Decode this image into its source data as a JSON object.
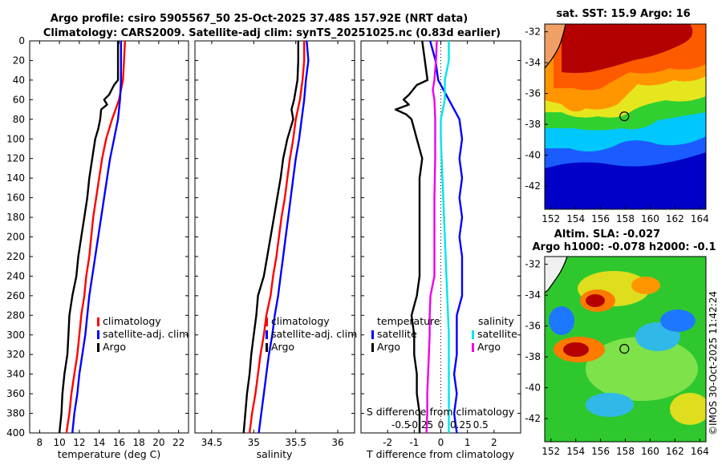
{
  "titles": {
    "line1": "Argo profile: csiro 5905567_50 25-Oct-2025 37.48S 157.92E (NRT data)",
    "line2": "Climatology: CARS2009. Satellite-adj clim: synTS_20251025.nc (0.83d earlier)",
    "sst": "sat. SST: 15.9 Argo: 16",
    "sla1": "Altim. SLA: -0.027",
    "sla2": "Argo h1000: -0.078 h2000: -0.1"
  },
  "watermark": "©IMOS 30-Oct-2025 11:42:24",
  "colors": {
    "argo": "#000000",
    "climatology": "#ff0000",
    "satellite": "#0000ff",
    "salinity_satellite": "#00e5ee",
    "salinity_argo": "#ee00ee"
  },
  "depth_ticks": [
    0,
    20,
    40,
    60,
    80,
    100,
    120,
    140,
    160,
    180,
    200,
    220,
    240,
    260,
    280,
    300,
    320,
    340,
    360,
    380,
    400
  ],
  "chart_data": [
    {
      "type": "line",
      "name": "temperature",
      "xlabel": "temperature (deg C)",
      "ylabel": "depth",
      "xlim": [
        7,
        23
      ],
      "ylim": [
        0,
        400
      ],
      "y_reversed": true,
      "xticks": [
        8,
        10,
        12,
        14,
        16,
        18,
        20,
        22
      ],
      "xtick_labels": [
        "8",
        "10",
        "12",
        "14",
        "16",
        "18",
        "20",
        "22"
      ],
      "legend": [
        "climatology",
        "satellite-adj. clim",
        "Argo"
      ],
      "series": [
        {
          "name": "climatology",
          "color": "#ff0000",
          "points": [
            [
              16.6,
              0
            ],
            [
              16.5,
              20
            ],
            [
              16.4,
              40
            ],
            [
              16.0,
              60
            ],
            [
              15.3,
              80
            ],
            [
              14.7,
              100
            ],
            [
              14.3,
              120
            ],
            [
              14.0,
              140
            ],
            [
              13.7,
              160
            ],
            [
              13.4,
              180
            ],
            [
              13.2,
              200
            ],
            [
              13.0,
              220
            ],
            [
              12.7,
              240
            ],
            [
              12.5,
              260
            ],
            [
              12.2,
              280
            ],
            [
              12.0,
              300
            ],
            [
              11.8,
              320
            ],
            [
              11.5,
              340
            ],
            [
              11.2,
              360
            ],
            [
              11.0,
              380
            ],
            [
              10.7,
              400
            ]
          ]
        },
        {
          "name": "satellite-adj. clim",
          "color": "#0000ff",
          "points": [
            [
              16.2,
              0
            ],
            [
              16.2,
              20
            ],
            [
              16.2,
              40
            ],
            [
              16.1,
              60
            ],
            [
              15.9,
              80
            ],
            [
              15.5,
              100
            ],
            [
              15.1,
              120
            ],
            [
              14.8,
              140
            ],
            [
              14.5,
              160
            ],
            [
              14.2,
              180
            ],
            [
              13.9,
              200
            ],
            [
              13.6,
              220
            ],
            [
              13.3,
              240
            ],
            [
              13.0,
              260
            ],
            [
              12.8,
              280
            ],
            [
              12.6,
              300
            ],
            [
              12.3,
              320
            ],
            [
              12.0,
              340
            ],
            [
              11.8,
              360
            ],
            [
              11.5,
              380
            ],
            [
              11.3,
              400
            ]
          ]
        },
        {
          "name": "Argo",
          "color": "#000000",
          "points": [
            [
              15.9,
              0
            ],
            [
              15.9,
              20
            ],
            [
              15.9,
              40
            ],
            [
              15.5,
              45
            ],
            [
              15.0,
              55
            ],
            [
              14.5,
              60
            ],
            [
              14.8,
              65
            ],
            [
              14.2,
              70
            ],
            [
              14.1,
              80
            ],
            [
              13.9,
              90
            ],
            [
              13.6,
              100
            ],
            [
              13.3,
              120
            ],
            [
              13.0,
              140
            ],
            [
              12.8,
              160
            ],
            [
              12.5,
              180
            ],
            [
              12.2,
              200
            ],
            [
              11.9,
              220
            ],
            [
              11.7,
              240
            ],
            [
              11.3,
              260
            ],
            [
              11.0,
              280
            ],
            [
              10.9,
              300
            ],
            [
              10.8,
              320
            ],
            [
              10.5,
              340
            ],
            [
              10.3,
              360
            ],
            [
              10.2,
              380
            ],
            [
              10.0,
              400
            ]
          ]
        }
      ]
    },
    {
      "type": "line",
      "name": "salinity",
      "xlabel": "salinity",
      "ylabel": "depth",
      "xlim": [
        34.3,
        36.2
      ],
      "ylim": [
        0,
        400
      ],
      "y_reversed": true,
      "xticks": [
        34.5,
        35,
        35.5,
        36
      ],
      "xtick_labels": [
        "34.5",
        "35",
        "35.5",
        "36"
      ],
      "legend": [
        "climatology",
        "satellite-adj. clim",
        "Argo"
      ],
      "series": [
        {
          "name": "climatology",
          "color": "#ff0000",
          "points": [
            [
              35.6,
              0
            ],
            [
              35.6,
              20
            ],
            [
              35.58,
              40
            ],
            [
              35.55,
              60
            ],
            [
              35.5,
              80
            ],
            [
              35.47,
              100
            ],
            [
              35.43,
              120
            ],
            [
              35.4,
              140
            ],
            [
              35.37,
              160
            ],
            [
              35.33,
              180
            ],
            [
              35.3,
              200
            ],
            [
              35.27,
              220
            ],
            [
              35.23,
              240
            ],
            [
              35.2,
              260
            ],
            [
              35.15,
              280
            ],
            [
              35.12,
              300
            ],
            [
              35.08,
              320
            ],
            [
              35.05,
              340
            ],
            [
              35.02,
              360
            ],
            [
              34.98,
              380
            ],
            [
              34.95,
              400
            ]
          ]
        },
        {
          "name": "satellite-adj. clim",
          "color": "#0000ff",
          "points": [
            [
              35.63,
              0
            ],
            [
              35.65,
              20
            ],
            [
              35.62,
              40
            ],
            [
              35.6,
              60
            ],
            [
              35.57,
              80
            ],
            [
              35.54,
              100
            ],
            [
              35.5,
              120
            ],
            [
              35.47,
              140
            ],
            [
              35.44,
              160
            ],
            [
              35.41,
              180
            ],
            [
              35.38,
              200
            ],
            [
              35.35,
              220
            ],
            [
              35.32,
              240
            ],
            [
              35.29,
              260
            ],
            [
              35.25,
              280
            ],
            [
              35.22,
              300
            ],
            [
              35.18,
              320
            ],
            [
              35.15,
              340
            ],
            [
              35.12,
              360
            ],
            [
              35.09,
              380
            ],
            [
              35.06,
              400
            ]
          ]
        },
        {
          "name": "Argo",
          "color": "#000000",
          "points": [
            [
              35.53,
              0
            ],
            [
              35.53,
              20
            ],
            [
              35.52,
              40
            ],
            [
              35.5,
              50
            ],
            [
              35.48,
              60
            ],
            [
              35.45,
              70
            ],
            [
              35.47,
              80
            ],
            [
              35.4,
              100
            ],
            [
              35.35,
              120
            ],
            [
              35.32,
              140
            ],
            [
              35.28,
              160
            ],
            [
              35.24,
              180
            ],
            [
              35.2,
              200
            ],
            [
              35.16,
              220
            ],
            [
              35.12,
              240
            ],
            [
              35.05,
              260
            ],
            [
              35.03,
              280
            ],
            [
              35.0,
              300
            ],
            [
              34.97,
              320
            ],
            [
              34.95,
              340
            ],
            [
              34.92,
              360
            ],
            [
              34.9,
              380
            ],
            [
              34.88,
              400
            ]
          ]
        }
      ]
    },
    {
      "type": "line",
      "name": "difference",
      "xlabel": "T difference from climatology",
      "x2label": "S difference from climatology",
      "ylabel": "depth",
      "xlim": [
        -3,
        3
      ],
      "ylim": [
        0,
        400
      ],
      "y_reversed": true,
      "xticks": [
        -2,
        -1,
        0,
        1,
        2
      ],
      "xtick_labels": [
        "-2",
        "-1",
        "0",
        "1",
        "2"
      ],
      "x2ticks": [
        -0.5,
        -0.25,
        0,
        0.25,
        0.5
      ],
      "x2tick_labels": [
        "-0.5",
        "-0.25",
        "0",
        "0.25",
        "0.5"
      ],
      "legend_temperature_title": "temperature",
      "legend_temperature": [
        "satellite",
        "Argo"
      ],
      "legend_salinity_title": "salinity",
      "legend_salinity": [
        "satellite",
        "Argo"
      ],
      "series": [
        {
          "name": "temperature satellite",
          "color": "#0000ff",
          "points": [
            [
              -0.4,
              0
            ],
            [
              -0.2,
              20
            ],
            [
              -0.1,
              40
            ],
            [
              0.3,
              60
            ],
            [
              0.5,
              70
            ],
            [
              0.7,
              80
            ],
            [
              0.8,
              100
            ],
            [
              0.7,
              120
            ],
            [
              0.8,
              140
            ],
            [
              0.7,
              160
            ],
            [
              0.8,
              180
            ],
            [
              0.7,
              200
            ],
            [
              0.8,
              220
            ],
            [
              0.8,
              240
            ],
            [
              0.8,
              260
            ],
            [
              0.6,
              280
            ],
            [
              0.6,
              300
            ],
            [
              0.6,
              320
            ],
            [
              0.5,
              340
            ],
            [
              0.6,
              360
            ],
            [
              0.5,
              380
            ],
            [
              0.6,
              400
            ]
          ]
        },
        {
          "name": "temperature Argo",
          "color": "#000000",
          "points": [
            [
              -0.7,
              0
            ],
            [
              -0.6,
              20
            ],
            [
              -0.5,
              40
            ],
            [
              -0.9,
              45
            ],
            [
              -1.2,
              55
            ],
            [
              -1.4,
              60
            ],
            [
              -1.2,
              65
            ],
            [
              -1.7,
              70
            ],
            [
              -1.3,
              75
            ],
            [
              -1.1,
              80
            ],
            [
              -0.9,
              100
            ],
            [
              -0.7,
              120
            ],
            [
              -0.8,
              140
            ],
            [
              -0.8,
              160
            ],
            [
              -0.8,
              180
            ],
            [
              -0.8,
              200
            ],
            [
              -0.8,
              220
            ],
            [
              -0.8,
              240
            ],
            [
              -0.9,
              260
            ],
            [
              -1.1,
              280
            ],
            [
              -1.0,
              300
            ],
            [
              -1.0,
              320
            ],
            [
              -0.9,
              340
            ],
            [
              -0.9,
              360
            ],
            [
              -0.8,
              380
            ],
            [
              -0.8,
              400
            ]
          ]
        },
        {
          "name": "salinity satellite",
          "color": "#00e5ee",
          "points": [
            [
              0.1,
              0
            ],
            [
              0.1,
              20
            ],
            [
              0.05,
              40
            ],
            [
              0.05,
              60
            ],
            [
              0.0,
              80
            ],
            [
              0.0,
              100
            ],
            [
              0.02,
              140
            ],
            [
              0.04,
              180
            ],
            [
              0.06,
              220
            ],
            [
              0.08,
              260
            ],
            [
              0.1,
              300
            ],
            [
              0.1,
              340
            ],
            [
              0.1,
              380
            ],
            [
              0.1,
              400
            ]
          ]
        },
        {
          "name": "salinity Argo",
          "color": "#ee00ee",
          "points": [
            [
              -0.05,
              0
            ],
            [
              -0.06,
              20
            ],
            [
              -0.08,
              40
            ],
            [
              -0.1,
              50
            ],
            [
              -0.08,
              60
            ],
            [
              -0.07,
              80
            ],
            [
              -0.07,
              120
            ],
            [
              -0.08,
              160
            ],
            [
              -0.08,
              200
            ],
            [
              -0.08,
              240
            ],
            [
              -0.13,
              260
            ],
            [
              -0.14,
              280
            ],
            [
              -0.14,
              300
            ],
            [
              -0.15,
              320
            ],
            [
              -0.16,
              340
            ],
            [
              -0.17,
              360
            ],
            [
              -0.17,
              380
            ],
            [
              -0.18,
              400
            ]
          ]
        }
      ]
    },
    {
      "type": "heatmap",
      "name": "sst_map",
      "title": "sat. SST: 15.9 Argo: 16",
      "xlim": [
        151.5,
        164.5
      ],
      "ylim": [
        -43.5,
        -31.5
      ],
      "xticks": [
        152,
        154,
        156,
        158,
        160,
        162,
        164
      ],
      "yticks": [
        -32,
        -34,
        -36,
        -38,
        -40,
        -42
      ],
      "xtick_labels": [
        "152",
        "154",
        "156",
        "158",
        "160",
        "162",
        "164"
      ],
      "ytick_labels": [
        "-32",
        "-34",
        "-36",
        "-38",
        "-40",
        "-42"
      ],
      "float_position": [
        157.92,
        -37.48
      ]
    },
    {
      "type": "heatmap",
      "name": "sla_map",
      "title": "Altim. SLA: -0.027",
      "xlim": [
        151.5,
        164.5
      ],
      "ylim": [
        -43.5,
        -31.5
      ],
      "xticks": [
        152,
        154,
        156,
        158,
        160,
        162,
        164
      ],
      "yticks": [
        -32,
        -34,
        -36,
        -38,
        -40,
        -42
      ],
      "xtick_labels": [
        "152",
        "154",
        "156",
        "158",
        "160",
        "162",
        "164"
      ],
      "ytick_labels": [
        "-32",
        "-34",
        "-36",
        "-38",
        "-40",
        "-42"
      ],
      "float_position": [
        157.92,
        -37.48
      ]
    }
  ]
}
